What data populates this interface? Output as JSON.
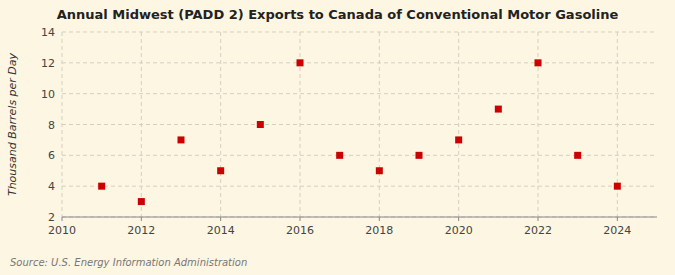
{
  "chart_data": {
    "type": "scatter",
    "title": "Annual Midwest (PADD 2) Exports to Canada of Conventional Motor Gasoline",
    "ylabel": "Thousand Barrels per Day",
    "source": "Source: U.S. Energy Information Administration",
    "x": [
      2011,
      2012,
      2013,
      2014,
      2015,
      2016,
      2017,
      2018,
      2019,
      2020,
      2021,
      2022,
      2023,
      2024
    ],
    "values": [
      4,
      3,
      7,
      5,
      8,
      12,
      6,
      5,
      6,
      7,
      9,
      12,
      6,
      4
    ],
    "xlim": [
      2010,
      2025
    ],
    "ylim": [
      2,
      14
    ],
    "xticks": [
      2010,
      2012,
      2014,
      2016,
      2018,
      2020,
      2022,
      2024
    ],
    "yticks": [
      2,
      4,
      6,
      8,
      10,
      12,
      14
    ],
    "color": "#cc0000",
    "marker": "square",
    "grid": true
  }
}
